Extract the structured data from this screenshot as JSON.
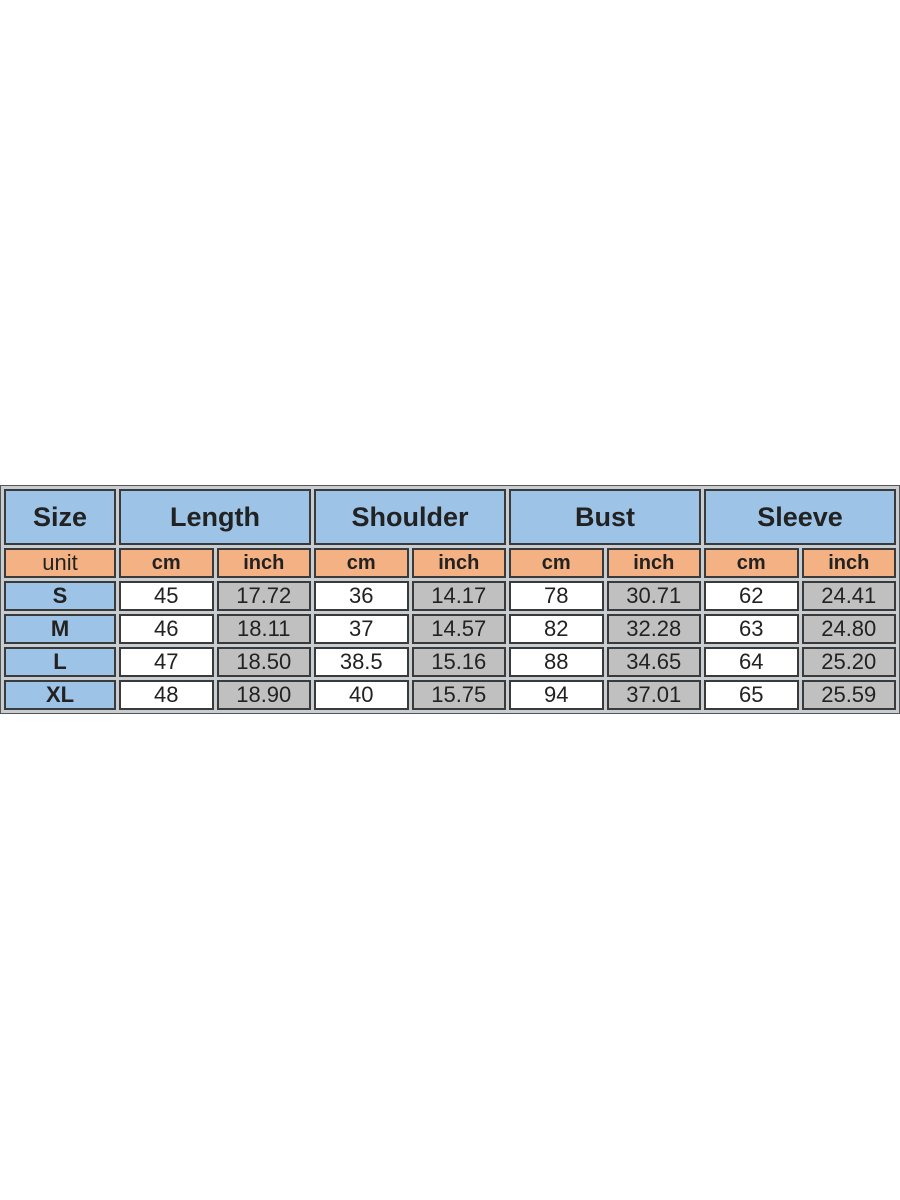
{
  "chart_data": {
    "type": "table",
    "header": {
      "size": "Size",
      "measures": [
        "Length",
        "Shoulder",
        "Bust",
        "Sleeve"
      ]
    },
    "units": {
      "label": "unit",
      "cm": "cm",
      "inch": "inch"
    },
    "rows": [
      {
        "size": "S",
        "values": [
          "45",
          "17.72",
          "36",
          "14.17",
          "78",
          "30.71",
          "62",
          "24.41"
        ]
      },
      {
        "size": "M",
        "values": [
          "46",
          "18.11",
          "37",
          "14.57",
          "82",
          "32.28",
          "63",
          "24.80"
        ]
      },
      {
        "size": "L",
        "values": [
          "47",
          "18.50",
          "38.5",
          "15.16",
          "88",
          "34.65",
          "64",
          "25.20"
        ]
      },
      {
        "size": "XL",
        "values": [
          "48",
          "18.90",
          "40",
          "15.75",
          "94",
          "37.01",
          "65",
          "25.59"
        ]
      }
    ],
    "colors": {
      "header": "#9dc3e6",
      "unit_row": "#f4b183",
      "inch_cells": "#c0c0c0",
      "cm_cells": "#ffffff"
    }
  }
}
